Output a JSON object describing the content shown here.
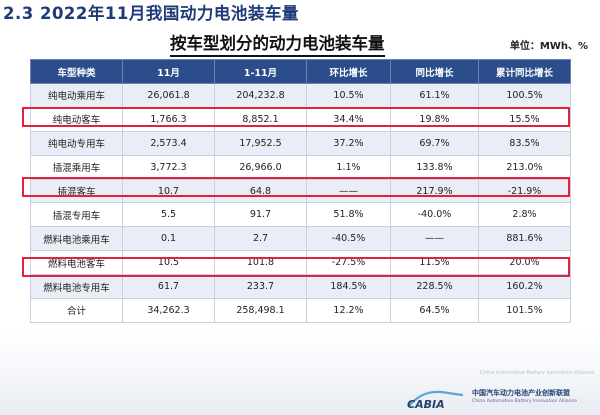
{
  "section_title": "2.3  2022年11月我国动力电池装车量",
  "table_title": "按车型划分的动力电池装车量",
  "unit_label": "单位：MWh、%",
  "table": {
    "headers": [
      "车型种类",
      "11月",
      "1-11月",
      "环比增长",
      "同比增长",
      "累计同比增长"
    ],
    "rows": [
      [
        "纯电动乘用车",
        "26,061.8",
        "204,232.8",
        "10.5%",
        "61.1%",
        "100.5%"
      ],
      [
        "纯电动客车",
        "1,766.3",
        "8,852.1",
        "34.4%",
        "19.8%",
        "15.5%"
      ],
      [
        "纯电动专用车",
        "2,573.4",
        "17,952.5",
        "37.2%",
        "69.7%",
        "83.5%"
      ],
      [
        "插混乘用车",
        "3,772.3",
        "26,966.0",
        "1.1%",
        "133.8%",
        "213.0%"
      ],
      [
        "插混客车",
        "10.7",
        "64.8",
        "——",
        "217.9%",
        "-21.9%"
      ],
      [
        "插混专用车",
        "5.5",
        "91.7",
        "51.8%",
        "-40.0%",
        "2.8%"
      ],
      [
        "燃料电池乘用车",
        "0.1",
        "2.7",
        "-40.5%",
        "——",
        "881.6%"
      ],
      [
        "燃料电池客车",
        "10.5",
        "101.8",
        "-27.5%",
        "11.5%",
        "20.0%"
      ],
      [
        "燃料电池专用车",
        "61.7",
        "233.7",
        "184.5%",
        "228.5%",
        "160.2%"
      ],
      [
        "合计",
        "34,262.3",
        "258,498.1",
        "12.2%",
        "64.5%",
        "101.5%"
      ]
    ]
  },
  "highlight_color": "#e6203c",
  "header_color": "#2b4d8c",
  "footer": {
    "watermark": "China Automotive Battery Innovation Alliance",
    "logo_letters": "CABIA",
    "logo_cn": "中国汽车动力电池产业创新联盟",
    "logo_en": "China Automotive Battery Innovation Alliance"
  }
}
